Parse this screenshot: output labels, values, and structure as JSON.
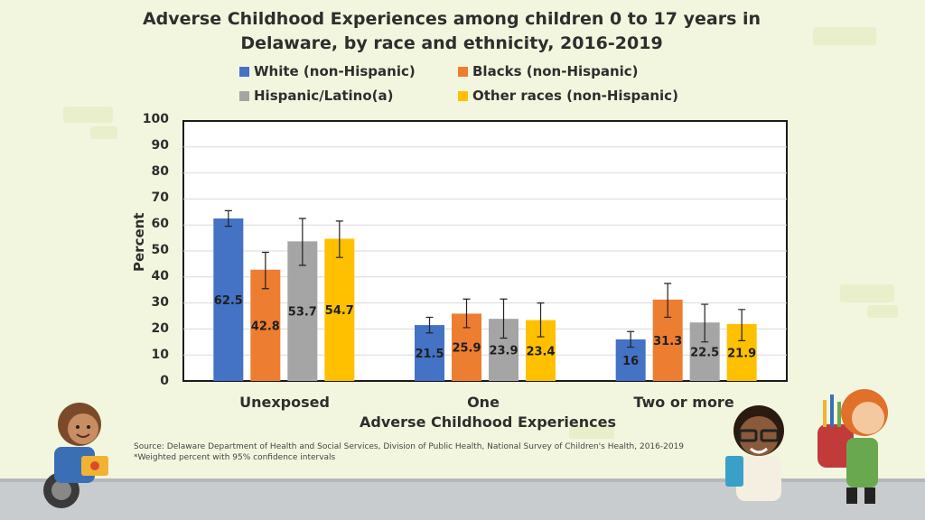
{
  "chart_data": {
    "type": "bar",
    "title": "Adverse Childhood Experiences among children 0 to 17 years in Delaware, by race and ethnicity, 2016-2019",
    "categories": [
      "Unexposed",
      "One",
      "Two or more"
    ],
    "series": [
      {
        "name": "White (non-Hispanic)",
        "color": "#4472c4",
        "values": [
          62.5,
          21.5,
          16
        ],
        "ci_low": [
          59.5,
          18.5,
          13
        ],
        "ci_high": [
          65.5,
          24.5,
          19
        ]
      },
      {
        "name": "Blacks (non-Hispanic)",
        "color": "#ed7d31",
        "values": [
          42.8,
          25.9,
          31.3
        ],
        "ci_low": [
          35.5,
          20.5,
          24.5
        ],
        "ci_high": [
          49.5,
          31.5,
          37.5
        ]
      },
      {
        "name": "Hispanic/Latino(a)",
        "color": "#a5a5a5",
        "values": [
          53.7,
          23.9,
          22.5
        ],
        "ci_low": [
          44.5,
          16.5,
          15
        ],
        "ci_high": [
          62.5,
          31.5,
          29.5
        ]
      },
      {
        "name": "Other races (non-Hispanic)",
        "color": "#ffc000",
        "values": [
          54.7,
          23.4,
          21.9
        ],
        "ci_low": [
          47.5,
          17,
          15.5
        ],
        "ci_high": [
          61.5,
          30,
          27.5
        ]
      }
    ],
    "xlabel": "Adverse Childhood Experiences",
    "ylabel": "Percent",
    "ylim": [
      0,
      100
    ],
    "yticks": [
      "0",
      "10",
      "20",
      "30",
      "40",
      "50",
      "60",
      "70",
      "80",
      "90",
      "100"
    ],
    "grid": true,
    "legend_position": "top"
  },
  "source_note": "Source: Delaware Department of Health and Social Services, Division of Public Health, National Survey of Children's Health, 2016-2019",
  "footnote": "*Weighted percent with 95% confidence intervals"
}
